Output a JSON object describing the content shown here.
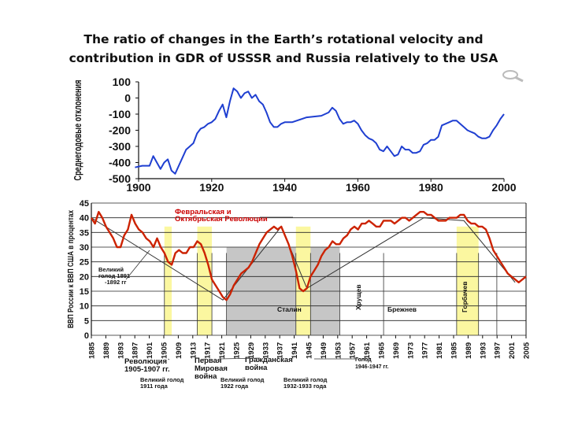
{
  "title_lines": [
    "The ratio of changes in the Earth’s rotational velocity and",
    "contribution in GDR of USSSR and Russia relatively to the USA"
  ],
  "chart_data": [
    {
      "type": "line",
      "title": "",
      "ylabel": "Среднегодовые отклонения",
      "xlabel": "",
      "xlim": [
        1900,
        2000
      ],
      "ylim": [
        -500,
        100
      ],
      "x_ticks": [
        1900,
        1920,
        1940,
        1960,
        1980,
        2000
      ],
      "y_ticks": [
        100,
        0,
        -100,
        -200,
        -300,
        -400,
        -500
      ],
      "grid": false,
      "series": [
        {
          "color": "#1f3fd1",
          "x": [
            1899,
            1901,
            1903,
            1904,
            1905,
            1906,
            1907,
            1908,
            1909,
            1910,
            1911,
            1912,
            1913,
            1914,
            1915,
            1916,
            1917,
            1918,
            1919,
            1920,
            1921,
            1922,
            1923,
            1924,
            1925,
            1926,
            1927,
            1928,
            1929,
            1930,
            1931,
            1932,
            1933,
            1934,
            1935,
            1936,
            1937,
            1938,
            1939,
            1940,
            1942,
            1946,
            1950,
            1952,
            1953,
            1954,
            1955,
            1956,
            1957,
            1958,
            1959,
            1960,
            1961,
            1962,
            1963,
            1964,
            1965,
            1966,
            1967,
            1968,
            1969,
            1970,
            1971,
            1972,
            1973,
            1974,
            1975,
            1976,
            1977,
            1978,
            1979,
            1980,
            1981,
            1982,
            1983,
            1984,
            1985,
            1986,
            1987,
            1988,
            1989,
            1990,
            1991,
            1992,
            1993,
            1994,
            1995,
            1996,
            1997,
            1998,
            1999,
            2000
          ],
          "values": [
            -430,
            -420,
            -420,
            -360,
            -400,
            -440,
            -400,
            -380,
            -450,
            -470,
            -420,
            -370,
            -320,
            -300,
            -280,
            -220,
            -190,
            -180,
            -160,
            -150,
            -130,
            -80,
            -40,
            -120,
            -20,
            60,
            40,
            0,
            30,
            40,
            0,
            20,
            -20,
            -40,
            -90,
            -150,
            -180,
            -180,
            -160,
            -150,
            -150,
            -120,
            -110,
            -90,
            -60,
            -80,
            -130,
            -160,
            -150,
            -150,
            -140,
            -160,
            -200,
            -230,
            -250,
            -260,
            -280,
            -320,
            -330,
            -300,
            -330,
            -360,
            -350,
            -300,
            -320,
            -320,
            -340,
            -340,
            -330,
            -290,
            -280,
            -260,
            -260,
            -240,
            -170,
            -160,
            -150,
            -140,
            -140,
            -160,
            -180,
            -200,
            -210,
            -220,
            -240,
            -250,
            -250,
            -240,
            -200,
            -170,
            -130,
            -100
          ]
        }
      ]
    },
    {
      "type": "line",
      "title": "",
      "ylabel": "ВВП России к ВВП США в процентах",
      "xlabel": "",
      "xlim": [
        1885,
        2004
      ],
      "ylim": [
        0,
        45
      ],
      "y_ticks": [
        0,
        5,
        10,
        15,
        20,
        25,
        30,
        35,
        40,
        45
      ],
      "x_ticks": [
        "1885",
        "1889",
        "1893",
        "1897",
        "1901",
        "1905",
        "1909",
        "1913",
        "1917",
        "1921",
        "1925",
        "1929",
        "1933",
        "1937",
        "1941",
        "1945",
        "1949",
        "1953",
        "1957",
        "1961",
        "1965",
        "1969",
        "1973",
        "1977",
        "1981",
        "1985",
        "1989",
        "1993",
        "1997",
        "2001",
        "2005"
      ],
      "grid": true,
      "series": [
        {
          "color": "#cc2200",
          "x": [
            1885,
            1886,
            1887,
            1888,
            1889,
            1890,
            1891,
            1892,
            1893,
            1894,
            1895,
            1896,
            1897,
            1898,
            1899,
            1900,
            1901,
            1902,
            1903,
            1904,
            1905,
            1906,
            1907,
            1908,
            1909,
            1910,
            1911,
            1912,
            1913,
            1914,
            1915,
            1916,
            1917,
            1918,
            1919,
            1920,
            1921,
            1922,
            1923,
            1924,
            1925,
            1926,
            1927,
            1928,
            1929,
            1930,
            1931,
            1932,
            1933,
            1934,
            1935,
            1936,
            1937,
            1938,
            1939,
            1940,
            1941,
            1942,
            1943,
            1944,
            1945,
            1946,
            1947,
            1948,
            1949,
            1950,
            1951,
            1952,
            1953,
            1954,
            1955,
            1956,
            1957,
            1958,
            1959,
            1960,
            1961,
            1962,
            1963,
            1964,
            1965,
            1966,
            1967,
            1968,
            1969,
            1970,
            1971,
            1972,
            1973,
            1974,
            1975,
            1976,
            1977,
            1978,
            1979,
            1980,
            1981,
            1982,
            1983,
            1984,
            1985,
            1986,
            1987,
            1988,
            1989,
            1990,
            1991,
            1992,
            1993,
            1994,
            1995,
            1996,
            1997,
            1998,
            1999,
            2000,
            2001,
            2002,
            2003,
            2004
          ],
          "values": [
            40,
            38,
            42,
            40,
            37,
            35,
            33,
            30,
            30,
            34,
            36,
            41,
            38,
            36,
            35,
            33,
            32,
            30,
            33,
            30,
            28,
            25,
            24,
            28,
            29,
            28,
            28,
            30,
            30,
            32,
            31,
            28,
            24,
            19,
            17,
            15,
            13,
            12,
            14,
            17,
            19,
            21,
            22,
            23,
            25,
            28,
            31,
            33,
            35,
            36,
            37,
            36,
            37,
            34,
            31,
            27,
            22,
            16,
            15,
            16,
            20,
            22,
            24,
            27,
            29,
            30,
            32,
            31,
            31,
            33,
            34,
            36,
            37,
            36,
            38,
            38,
            39,
            38,
            37,
            37,
            39,
            39,
            39,
            38,
            39,
            40,
            40,
            39,
            40,
            41,
            42,
            42,
            41,
            41,
            40,
            39,
            39,
            39,
            40,
            40,
            40,
            41,
            41,
            39,
            38,
            38,
            37,
            37,
            36,
            33,
            29,
            27,
            25,
            23,
            21,
            20,
            19,
            18,
            19,
            20
          ],
          "fill_periods": []
        }
      ],
      "trend_line": {
        "x": [
          1885,
          1921,
          1937,
          1944,
          1976,
          1987,
          2001
        ],
        "values": [
          40,
          12,
          37,
          16,
          40,
          39,
          18
        ]
      },
      "annotations": [
        {
          "text": "Февральская и",
          "color": "#cc0000"
        },
        {
          "text": "Октябрьская Революции",
          "color": "#cc0000"
        },
        {
          "text": "Великий",
          "color": "#111111"
        },
        {
          "text": "голод 1891",
          "color": "#111111"
        },
        {
          "text": "-1892 гг",
          "color": "#111111"
        },
        {
          "text": "Сталин",
          "color": "#111111"
        },
        {
          "text": "Хрущев",
          "color": "#111111"
        },
        {
          "text": "Брежнев",
          "color": "#111111"
        },
        {
          "text": "Горбачев",
          "color": "#111111"
        }
      ],
      "bottom_labels": [
        {
          "lines": [
            "Революция",
            "1905-1907 гг."
          ]
        },
        {
          "lines": [
            "Первая",
            "Мировая",
            "война"
          ]
        },
        {
          "lines": [
            "Гражданская",
            "война"
          ]
        },
        {
          "lines": [
            "Голод",
            "1946-1947 гг."
          ]
        },
        {
          "lines": [
            "Великий голод",
            "1911 года"
          ]
        },
        {
          "lines": [
            "Великий голод",
            "1922 года"
          ]
        },
        {
          "lines": [
            "Великий голод",
            "1932-1933 года"
          ]
        }
      ],
      "shaded_periods": {
        "yellow": [
          [
            1905,
            1907
          ],
          [
            1914,
            1918
          ],
          [
            1941,
            1945
          ],
          [
            1985,
            1991
          ]
        ],
        "gray": [
          [
            1922,
            1953
          ]
        ]
      }
    }
  ]
}
